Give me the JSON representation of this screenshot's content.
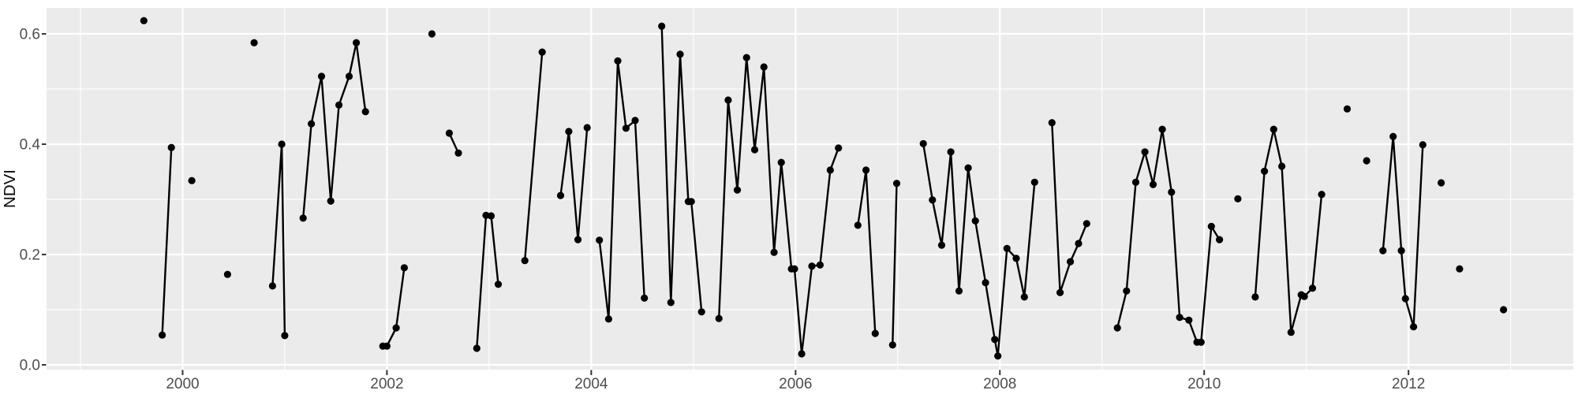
{
  "theme": {
    "background": "#FFFFFF",
    "panel_bg": "#EBEBEB",
    "grid_color": "#FFFFFF",
    "line_color": "#000000",
    "point_color": "#000000",
    "axis_text_color": "#4D4D4D",
    "axis_title_color": "#0A0A0A",
    "tick_color": "#333333"
  },
  "chart_data": {
    "type": "line",
    "title": "",
    "xlabel": "",
    "ylabel": "NDVI",
    "grid": {
      "major": true,
      "minor": true
    },
    "legend": false,
    "x_axis": {
      "lim": [
        1998.668,
        2013.613
      ],
      "ticks": [
        {
          "value": 2000,
          "label": "2000"
        },
        {
          "value": 2002,
          "label": "2002"
        },
        {
          "value": 2004,
          "label": "2004"
        },
        {
          "value": 2006,
          "label": "2006"
        },
        {
          "value": 2008,
          "label": "2008"
        },
        {
          "value": 2010,
          "label": "2010"
        },
        {
          "value": 2012,
          "label": "2012"
        }
      ],
      "minor": [
        1999,
        2001,
        2003,
        2005,
        2007,
        2009,
        2011,
        2013
      ]
    },
    "y_axis": {
      "lim": [
        -0.0086,
        0.6471
      ],
      "ticks": [
        {
          "value": 0.0,
          "label": "0.0"
        },
        {
          "value": 0.2,
          "label": "0.2"
        },
        {
          "value": 0.4,
          "label": "0.4"
        },
        {
          "value": 0.6,
          "label": "0.6"
        }
      ],
      "minor": [
        0.1,
        0.3,
        0.5
      ]
    },
    "series": [
      {
        "name": "NDVI",
        "segments": [
          [
            [
              1999.62,
              0.624
            ]
          ],
          [
            [
              1999.8,
              0.054
            ],
            [
              1999.89,
              0.394
            ]
          ],
          [
            [
              2000.09,
              0.334
            ]
          ],
          [
            [
              2000.44,
              0.164
            ]
          ],
          [
            [
              2000.7,
              0.584
            ]
          ],
          [
            [
              2000.88,
              0.143
            ],
            [
              2000.97,
              0.4
            ],
            [
              2001.0,
              0.053
            ]
          ],
          [
            [
              2001.18,
              0.266
            ],
            [
              2001.26,
              0.437
            ],
            [
              2001.36,
              0.523
            ],
            [
              2001.45,
              0.297
            ],
            [
              2001.53,
              0.471
            ],
            [
              2001.63,
              0.523
            ],
            [
              2001.7,
              0.584
            ],
            [
              2001.79,
              0.459
            ]
          ],
          [
            [
              2001.96,
              0.034
            ],
            [
              2002.0,
              0.034
            ],
            [
              2002.09,
              0.067
            ],
            [
              2002.17,
              0.176
            ]
          ],
          [
            [
              2002.44,
              0.6
            ]
          ],
          [
            [
              2002.61,
              0.42
            ],
            [
              2002.7,
              0.384
            ]
          ],
          [
            [
              2002.88,
              0.03
            ],
            [
              2002.97,
              0.271
            ],
            [
              2003.02,
              0.27
            ],
            [
              2003.09,
              0.146
            ]
          ],
          [
            [
              2003.35,
              0.189
            ],
            [
              2003.52,
              0.567
            ]
          ],
          [
            [
              2003.7,
              0.307
            ],
            [
              2003.78,
              0.423
            ],
            [
              2003.87,
              0.227
            ],
            [
              2003.96,
              0.43
            ]
          ],
          [
            [
              2004.08,
              0.226
            ],
            [
              2004.17,
              0.083
            ],
            [
              2004.26,
              0.551
            ],
            [
              2004.34,
              0.429
            ],
            [
              2004.43,
              0.443
            ],
            [
              2004.52,
              0.121
            ]
          ],
          [
            [
              2004.69,
              0.614
            ],
            [
              2004.78,
              0.113
            ],
            [
              2004.87,
              0.563
            ],
            [
              2004.95,
              0.296
            ],
            [
              2004.98,
              0.296
            ],
            [
              2005.08,
              0.096
            ]
          ],
          [
            [
              2005.25,
              0.084
            ],
            [
              2005.34,
              0.48
            ],
            [
              2005.43,
              0.317
            ],
            [
              2005.52,
              0.557
            ],
            [
              2005.6,
              0.39
            ],
            [
              2005.69,
              0.54
            ],
            [
              2005.79,
              0.204
            ],
            [
              2005.86,
              0.367
            ],
            [
              2005.96,
              0.174
            ],
            [
              2005.99,
              0.174
            ],
            [
              2006.06,
              0.02
            ],
            [
              2006.16,
              0.179
            ],
            [
              2006.24,
              0.181
            ],
            [
              2006.34,
              0.353
            ],
            [
              2006.42,
              0.393
            ]
          ],
          [
            [
              2006.61,
              0.253
            ],
            [
              2006.69,
              0.353
            ],
            [
              2006.78,
              0.057
            ]
          ],
          [
            [
              2006.95,
              0.036
            ],
            [
              2006.99,
              0.329
            ]
          ],
          [
            [
              2007.25,
              0.401
            ],
            [
              2007.34,
              0.299
            ],
            [
              2007.43,
              0.217
            ],
            [
              2007.52,
              0.386
            ],
            [
              2007.6,
              0.134
            ],
            [
              2007.69,
              0.357
            ],
            [
              2007.76,
              0.261
            ],
            [
              2007.86,
              0.149
            ],
            [
              2007.95,
              0.046
            ],
            [
              2007.98,
              0.016
            ],
            [
              2008.07,
              0.211
            ],
            [
              2008.16,
              0.193
            ],
            [
              2008.24,
              0.123
            ],
            [
              2008.34,
              0.331
            ]
          ],
          [
            [
              2008.51,
              0.439
            ],
            [
              2008.59,
              0.131
            ],
            [
              2008.69,
              0.187
            ],
            [
              2008.77,
              0.22
            ],
            [
              2008.85,
              0.256
            ]
          ],
          [
            [
              2009.15,
              0.067
            ],
            [
              2009.24,
              0.134
            ],
            [
              2009.33,
              0.331
            ],
            [
              2009.42,
              0.386
            ],
            [
              2009.5,
              0.327
            ],
            [
              2009.59,
              0.427
            ],
            [
              2009.68,
              0.313
            ],
            [
              2009.76,
              0.086
            ],
            [
              2009.85,
              0.081
            ],
            [
              2009.93,
              0.041
            ],
            [
              2009.97,
              0.041
            ],
            [
              2010.07,
              0.251
            ],
            [
              2010.15,
              0.227
            ]
          ],
          [
            [
              2010.33,
              0.301
            ]
          ],
          [
            [
              2010.5,
              0.123
            ],
            [
              2010.59,
              0.351
            ],
            [
              2010.68,
              0.427
            ],
            [
              2010.76,
              0.36
            ],
            [
              2010.85,
              0.059
            ],
            [
              2010.95,
              0.127
            ],
            [
              2010.98,
              0.124
            ],
            [
              2011.06,
              0.139
            ],
            [
              2011.15,
              0.309
            ]
          ],
          [
            [
              2011.4,
              0.464
            ]
          ],
          [
            [
              2011.59,
              0.37
            ]
          ],
          [
            [
              2011.75,
              0.207
            ],
            [
              2011.85,
              0.414
            ],
            [
              2011.93,
              0.207
            ],
            [
              2011.97,
              0.12
            ],
            [
              2012.05,
              0.069
            ],
            [
              2012.14,
              0.399
            ]
          ],
          [
            [
              2012.32,
              0.33
            ]
          ],
          [
            [
              2012.5,
              0.174
            ]
          ],
          [
            [
              2012.93,
              0.1
            ]
          ]
        ]
      }
    ]
  }
}
